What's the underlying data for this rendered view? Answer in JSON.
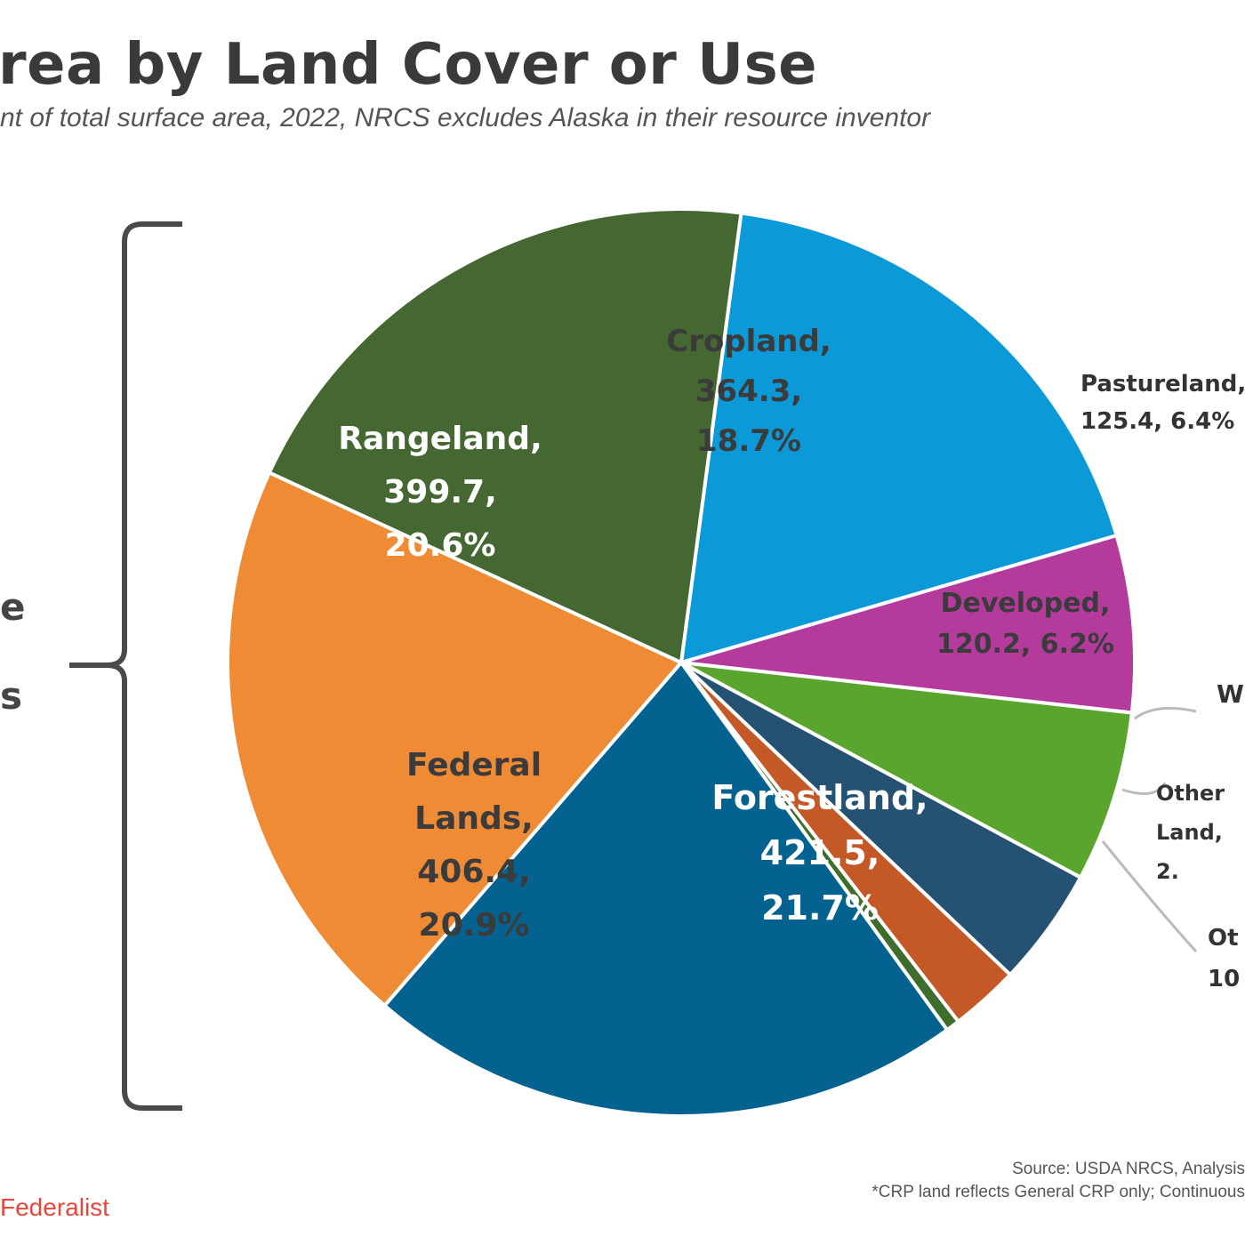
{
  "title": "rea by Land Cover or Use",
  "subtitle": "nt of total surface area, 2022, NRCS excludes Alaska in their resource inventor",
  "side_labels": [
    "e",
    "s"
  ],
  "source_lines": [
    "Source: USDA NRCS, Analysis",
    "*CRP land reflects General CRP only; Continuous"
  ],
  "brand": "Federalist",
  "chart_data": {
    "type": "pie",
    "start_angle_deg": 7.6,
    "direction": "clockwise",
    "slices": [
      {
        "lines": [
          "Cropland,",
          "364.3,",
          "18.7%"
        ],
        "value": 18.7,
        "color": "#0b9ad7",
        "text_color": "#3b3b3b",
        "label_pos": "inside"
      },
      {
        "lines": [
          "Pastureland,",
          "125.4, 6.4%"
        ],
        "value": 6.4,
        "color": "#b43a9c",
        "text_color": "#333333",
        "label_pos": "outside"
      },
      {
        "lines": [
          "Developed,",
          "120.2, 6.2%"
        ],
        "value": 6.2,
        "color": "#5aa52d",
        "text_color": "#3b3b3b",
        "label_pos": "inside"
      },
      {
        "lines": [
          "W"
        ],
        "value": 4.3,
        "color": "#255273",
        "text_color": "#333333",
        "label_pos": "outside"
      },
      {
        "lines": [
          "Other",
          "Land,",
          "2."
        ],
        "value": 2.5,
        "color": "#c45827",
        "text_color": "#333333",
        "label_pos": "outside"
      },
      {
        "lines": [
          "Ot",
          "10"
        ],
        "value": 0.5,
        "color": "#3f6d2e",
        "text_color": "#333333",
        "label_pos": "outside"
      },
      {
        "lines": [
          "Forestland,",
          "421.5,",
          "21.7%"
        ],
        "value": 21.7,
        "color": "#03628f",
        "text_color": "#ffffff",
        "label_pos": "inside"
      },
      {
        "lines": [
          "Federal",
          "Lands,",
          "406.4,",
          "20.9%"
        ],
        "value": 20.9,
        "color": "#f08b35",
        "text_color": "#3b3b3b",
        "label_pos": "inside"
      },
      {
        "lines": [
          "Rangeland,",
          "399.7,",
          "20.6%"
        ],
        "value": 20.6,
        "color": "#456731",
        "text_color": "#ffffff",
        "label_pos": "inside"
      }
    ]
  }
}
